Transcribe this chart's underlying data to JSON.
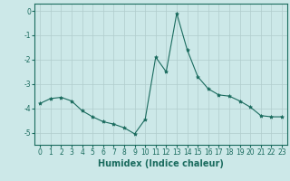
{
  "x": [
    0,
    1,
    2,
    3,
    4,
    5,
    6,
    7,
    8,
    9,
    10,
    11,
    12,
    13,
    14,
    15,
    16,
    17,
    18,
    19,
    20,
    21,
    22,
    23
  ],
  "y": [
    -3.8,
    -3.6,
    -3.55,
    -3.7,
    -4.1,
    -4.35,
    -4.55,
    -4.65,
    -4.8,
    -5.05,
    -4.45,
    -1.9,
    -2.5,
    -0.1,
    -1.6,
    -2.7,
    -3.2,
    -3.45,
    -3.5,
    -3.7,
    -3.95,
    -4.3,
    -4.35,
    -4.35
  ],
  "line_color": "#1a6b5e",
  "marker": "*",
  "marker_size": 3,
  "xlabel": "Humidex (Indice chaleur)",
  "ylim": [
    -5.5,
    0.3
  ],
  "xlim": [
    -0.5,
    23.5
  ],
  "yticks": [
    0,
    -1,
    -2,
    -3,
    -4,
    -5
  ],
  "ytick_labels": [
    "0",
    "-1",
    "-2",
    "-3",
    "-4",
    "-5"
  ],
  "xticks": [
    0,
    1,
    2,
    3,
    4,
    5,
    6,
    7,
    8,
    9,
    10,
    11,
    12,
    13,
    14,
    15,
    16,
    17,
    18,
    19,
    20,
    21,
    22,
    23
  ],
  "background_color": "#cce8e8",
  "grid_color": "#b0cccc",
  "tick_fontsize": 5.5,
  "xlabel_fontsize": 7,
  "spine_color": "#1a6b5e"
}
